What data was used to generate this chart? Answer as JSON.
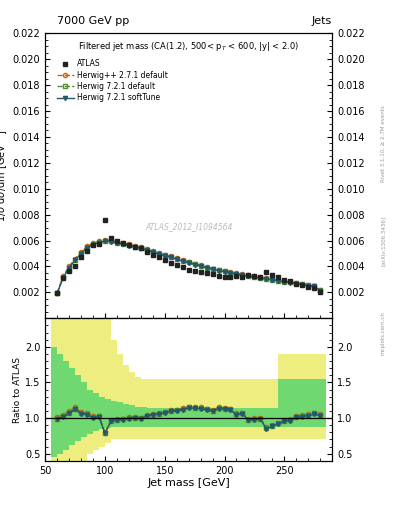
{
  "title_top": "7000 GeV pp",
  "title_right": "Jets",
  "right_label_top": "Rivet 3.1.10, ≥ 2.7M events",
  "right_label_mid": "[arXiv:1306.3436]",
  "right_label_bot": "mcplots.cern.ch",
  "watermark": "ATLAS_2012_I1094564",
  "main_title": "Filtered jet mass (CA(1.2), 500< p$_T$ < 600, |y| < 2.0)",
  "xlabel": "Jet mass [GeV]",
  "ylabel": "1/σ dσ/dm [GeV⁻¹]",
  "ylabel_ratio": "Ratio to ATLAS",
  "ylim_main": [
    0.0,
    0.022
  ],
  "ylim_ratio": [
    0.4,
    2.4
  ],
  "yticks_main": [
    0.002,
    0.004,
    0.006,
    0.008,
    0.01,
    0.012,
    0.014,
    0.016,
    0.018,
    0.02,
    0.022
  ],
  "yticks_ratio": [
    0.5,
    1.0,
    1.5,
    2.0
  ],
  "xlim": [
    50,
    290
  ],
  "xticks": [
    50,
    100,
    150,
    200,
    250
  ],
  "atlas_x": [
    60,
    65,
    70,
    75,
    80,
    85,
    90,
    95,
    100,
    105,
    110,
    115,
    120,
    125,
    130,
    135,
    140,
    145,
    150,
    155,
    160,
    165,
    170,
    175,
    180,
    185,
    190,
    195,
    200,
    205,
    210,
    215,
    220,
    225,
    230,
    235,
    240,
    245,
    250,
    255,
    260,
    265,
    270,
    275,
    280
  ],
  "atlas_y": [
    0.00195,
    0.0031,
    0.00365,
    0.004,
    0.0047,
    0.0052,
    0.00565,
    0.00575,
    0.0076,
    0.0062,
    0.006,
    0.00585,
    0.00565,
    0.0055,
    0.00545,
    0.0051,
    0.0049,
    0.0047,
    0.0045,
    0.0043,
    0.00415,
    0.00395,
    0.00375,
    0.00365,
    0.00355,
    0.0035,
    0.00345,
    0.00325,
    0.0032,
    0.00315,
    0.00325,
    0.00315,
    0.00335,
    0.00325,
    0.00315,
    0.00355,
    0.00335,
    0.00315,
    0.00295,
    0.00285,
    0.00265,
    0.00255,
    0.00245,
    0.00235,
    0.00205
  ],
  "herwig_pp_x": [
    60,
    65,
    70,
    75,
    80,
    85,
    90,
    95,
    100,
    105,
    110,
    115,
    120,
    125,
    130,
    135,
    140,
    145,
    150,
    155,
    160,
    165,
    170,
    175,
    180,
    185,
    190,
    195,
    200,
    205,
    210,
    215,
    220,
    225,
    230,
    235,
    240,
    245,
    250,
    255,
    260,
    265,
    270,
    275,
    280
  ],
  "herwig_pp_y": [
    0.00197,
    0.00325,
    0.004,
    0.0046,
    0.0051,
    0.00555,
    0.00578,
    0.00594,
    0.00605,
    0.006,
    0.0059,
    0.0058,
    0.0057,
    0.00558,
    0.00548,
    0.00533,
    0.00518,
    0.00504,
    0.0049,
    0.00477,
    0.00463,
    0.00449,
    0.00435,
    0.00421,
    0.00409,
    0.00396,
    0.00384,
    0.00374,
    0.00365,
    0.00356,
    0.00347,
    0.00339,
    0.00331,
    0.00323,
    0.00315,
    0.00308,
    0.00301,
    0.00294,
    0.00287,
    0.0028,
    0.00273,
    0.00266,
    0.00259,
    0.00252,
    0.00218
  ],
  "herwig721_x": [
    60,
    65,
    70,
    75,
    80,
    85,
    90,
    95,
    100,
    105,
    110,
    115,
    120,
    125,
    130,
    135,
    140,
    145,
    150,
    155,
    160,
    165,
    170,
    175,
    180,
    185,
    190,
    195,
    200,
    205,
    210,
    215,
    220,
    225,
    230,
    235,
    240,
    245,
    250,
    255,
    260,
    265,
    270,
    275,
    280
  ],
  "herwig721_y": [
    0.00193,
    0.00318,
    0.00392,
    0.00453,
    0.00503,
    0.00548,
    0.00572,
    0.00589,
    0.006,
    0.00595,
    0.00584,
    0.00574,
    0.00564,
    0.00553,
    0.00543,
    0.00528,
    0.00513,
    0.00499,
    0.00486,
    0.00473,
    0.00459,
    0.00445,
    0.00431,
    0.00418,
    0.00405,
    0.00392,
    0.00381,
    0.0037,
    0.00362,
    0.00353,
    0.00344,
    0.00336,
    0.00328,
    0.0032,
    0.00312,
    0.00305,
    0.00298,
    0.00291,
    0.00284,
    0.00277,
    0.0027,
    0.00263,
    0.00256,
    0.0025,
    0.00215
  ],
  "herwig721soft_x": [
    60,
    65,
    70,
    75,
    80,
    85,
    90,
    95,
    100,
    105,
    110,
    115,
    120,
    125,
    130,
    135,
    140,
    145,
    150,
    155,
    160,
    165,
    170,
    175,
    180,
    185,
    190,
    195,
    200,
    205,
    210,
    215,
    220,
    225,
    230,
    235,
    240,
    245,
    250,
    255,
    260,
    265,
    270,
    275,
    280
  ],
  "herwig721soft_y": [
    0.00192,
    0.00314,
    0.00389,
    0.00449,
    0.00499,
    0.00544,
    0.00568,
    0.00585,
    0.00596,
    0.00591,
    0.00581,
    0.00571,
    0.00561,
    0.0055,
    0.0054,
    0.00525,
    0.0051,
    0.00496,
    0.00483,
    0.0047,
    0.00456,
    0.00442,
    0.00428,
    0.00415,
    0.00402,
    0.00389,
    0.00378,
    0.00368,
    0.00359,
    0.0035,
    0.00341,
    0.00333,
    0.00325,
    0.00317,
    0.0031,
    0.00302,
    0.00295,
    0.00288,
    0.00281,
    0.00274,
    0.00267,
    0.0026,
    0.00253,
    0.00247,
    0.00212
  ],
  "ratio_herwig_pp": [
    1.01,
    1.048,
    1.096,
    1.15,
    1.085,
    1.067,
    1.023,
    1.033,
    0.796,
    0.968,
    0.983,
    0.992,
    1.009,
    1.015,
    1.006,
    1.045,
    1.057,
    1.072,
    1.089,
    1.109,
    1.116,
    1.135,
    1.16,
    1.153,
    1.152,
    1.131,
    1.113,
    1.151,
    1.141,
    1.13,
    1.068,
    1.076,
    0.988,
    0.994,
    1.0,
    0.868,
    0.9,
    0.933,
    0.973,
    0.982,
    1.03,
    1.043,
    1.057,
    1.072,
    1.063
  ],
  "ratio_herwig721": [
    0.99,
    1.026,
    1.074,
    1.133,
    1.07,
    1.054,
    1.013,
    1.024,
    0.789,
    0.96,
    0.973,
    0.981,
    0.998,
    1.005,
    0.996,
    1.035,
    1.047,
    1.062,
    1.08,
    1.1,
    1.107,
    1.127,
    1.149,
    1.144,
    1.141,
    1.12,
    1.104,
    1.138,
    1.131,
    1.121,
    1.058,
    1.067,
    0.979,
    0.985,
    0.991,
    0.859,
    0.891,
    0.925,
    0.963,
    0.972,
    1.019,
    1.031,
    1.045,
    1.064,
    1.049
  ],
  "ratio_herwig721soft": [
    0.985,
    1.013,
    1.066,
    1.123,
    1.062,
    1.046,
    1.005,
    1.017,
    0.784,
    0.953,
    0.968,
    0.977,
    0.993,
    1.0,
    0.991,
    1.029,
    1.041,
    1.055,
    1.073,
    1.093,
    1.099,
    1.119,
    1.141,
    1.137,
    1.133,
    1.111,
    1.094,
    1.132,
    1.122,
    1.111,
    1.049,
    1.057,
    0.97,
    0.976,
    0.984,
    0.852,
    0.882,
    0.916,
    0.954,
    0.961,
    1.008,
    1.02,
    1.033,
    1.055,
    1.034
  ],
  "yellow_band_x": [
    57.5,
    62.5,
    67.5,
    72.5,
    77.5,
    82.5,
    87.5,
    92.5,
    97.5,
    102.5,
    107.5,
    112.5,
    117.5,
    122.5,
    127.5,
    132.5,
    137.5,
    142.5,
    147.5,
    152.5,
    157.5,
    162.5,
    167.5,
    172.5,
    177.5,
    182.5,
    187.5,
    192.5,
    197.5,
    202.5,
    207.5,
    212.5,
    217.5,
    222.5,
    227.5,
    232.5,
    237.5,
    242.5,
    247.5,
    252.5,
    257.5,
    262.5,
    267.5,
    272.5,
    277.5,
    282.5
  ],
  "yellow_lo": [
    0.3,
    0.3,
    0.3,
    0.3,
    0.3,
    0.4,
    0.5,
    0.55,
    0.6,
    0.65,
    0.7,
    0.7,
    0.7,
    0.7,
    0.7,
    0.7,
    0.7,
    0.7,
    0.7,
    0.7,
    0.7,
    0.7,
    0.7,
    0.7,
    0.7,
    0.7,
    0.7,
    0.7,
    0.7,
    0.7,
    0.7,
    0.7,
    0.7,
    0.7,
    0.7,
    0.7,
    0.7,
    0.7,
    0.7,
    0.7,
    0.7,
    0.7,
    0.7,
    0.7,
    0.7,
    0.7
  ],
  "yellow_hi": [
    2.4,
    2.4,
    2.4,
    2.4,
    2.4,
    2.4,
    2.4,
    2.4,
    2.4,
    2.4,
    2.1,
    1.9,
    1.75,
    1.65,
    1.58,
    1.55,
    1.55,
    1.55,
    1.55,
    1.55,
    1.55,
    1.55,
    1.55,
    1.55,
    1.55,
    1.55,
    1.55,
    1.55,
    1.55,
    1.55,
    1.55,
    1.55,
    1.55,
    1.55,
    1.55,
    1.55,
    1.55,
    1.55,
    1.9,
    1.9,
    1.9,
    1.9,
    1.9,
    1.9,
    1.9,
    1.9
  ],
  "green_lo": [
    0.45,
    0.5,
    0.55,
    0.62,
    0.68,
    0.73,
    0.78,
    0.82,
    0.84,
    0.86,
    0.87,
    0.88,
    0.88,
    0.88,
    0.88,
    0.88,
    0.88,
    0.88,
    0.88,
    0.88,
    0.88,
    0.88,
    0.88,
    0.88,
    0.88,
    0.88,
    0.88,
    0.88,
    0.88,
    0.88,
    0.88,
    0.88,
    0.88,
    0.88,
    0.88,
    0.88,
    0.88,
    0.88,
    0.88,
    0.88,
    0.88,
    0.88,
    0.88,
    0.88,
    0.88,
    0.88
  ],
  "green_hi": [
    2.0,
    1.9,
    1.8,
    1.7,
    1.6,
    1.5,
    1.4,
    1.35,
    1.3,
    1.27,
    1.24,
    1.22,
    1.2,
    1.18,
    1.16,
    1.15,
    1.14,
    1.14,
    1.14,
    1.14,
    1.14,
    1.14,
    1.14,
    1.14,
    1.14,
    1.14,
    1.14,
    1.14,
    1.14,
    1.14,
    1.14,
    1.14,
    1.14,
    1.14,
    1.14,
    1.14,
    1.14,
    1.14,
    1.55,
    1.55,
    1.55,
    1.55,
    1.55,
    1.55,
    1.55,
    1.55
  ],
  "color_atlas": "#222222",
  "color_herwig_pp": "#d06010",
  "color_herwig721": "#509030",
  "color_herwig721soft": "#205870",
  "color_yellow": "#eeee80",
  "color_green": "#70d870",
  "bg": "#ffffff"
}
